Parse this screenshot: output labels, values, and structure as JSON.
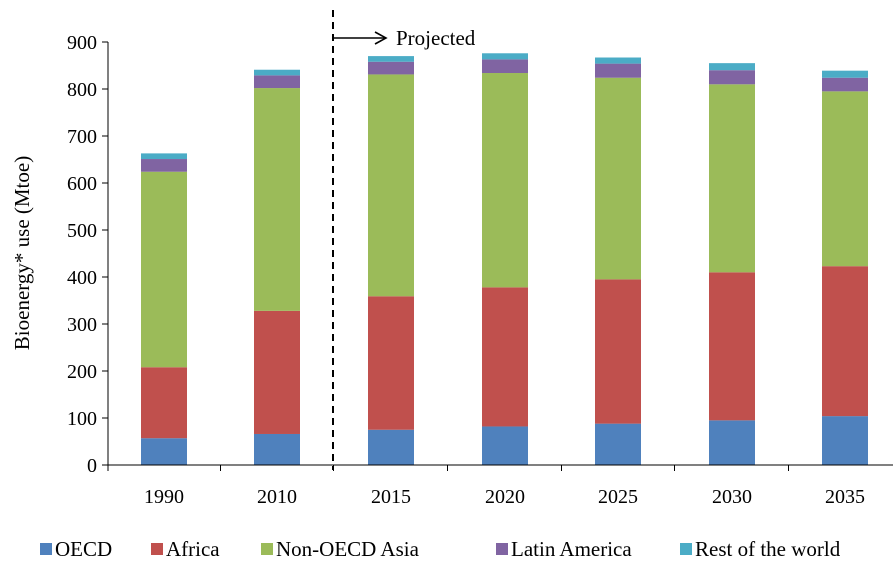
{
  "chart_data": {
    "type": "bar",
    "stacked": true,
    "title": "",
    "xlabel": "",
    "ylabel": "Bioenergy* use (Mtoe)",
    "ylim": [
      0,
      900
    ],
    "yticks": [
      0,
      100,
      200,
      300,
      400,
      500,
      600,
      700,
      800,
      900
    ],
    "categories": [
      "1990",
      "2010",
      "2015",
      "2020",
      "2025",
      "2030",
      "2035"
    ],
    "series": [
      {
        "name": "OECD",
        "color": "#4F81BD",
        "values": [
          57,
          66,
          75,
          82,
          88,
          95,
          104
        ]
      },
      {
        "name": "Africa",
        "color": "#C0504D",
        "values": [
          151,
          262,
          284,
          296,
          307,
          315,
          319
        ]
      },
      {
        "name": "Non-OECD Asia",
        "color": "#9BBB59",
        "values": [
          416,
          474,
          472,
          456,
          429,
          400,
          372
        ]
      },
      {
        "name": "Latin America",
        "color": "#8064A2",
        "values": [
          27,
          27,
          27,
          29,
          30,
          30,
          29
        ]
      },
      {
        "name": "Rest of the world",
        "color": "#4BACC6",
        "values": [
          12,
          12,
          12,
          13,
          13,
          15,
          15
        ]
      }
    ],
    "grid": false,
    "legend_position": "bottom",
    "annotation": {
      "text": "Projected",
      "divider_between": [
        "2010",
        "2015"
      ],
      "style": "dashed vertical line with right arrow"
    }
  }
}
